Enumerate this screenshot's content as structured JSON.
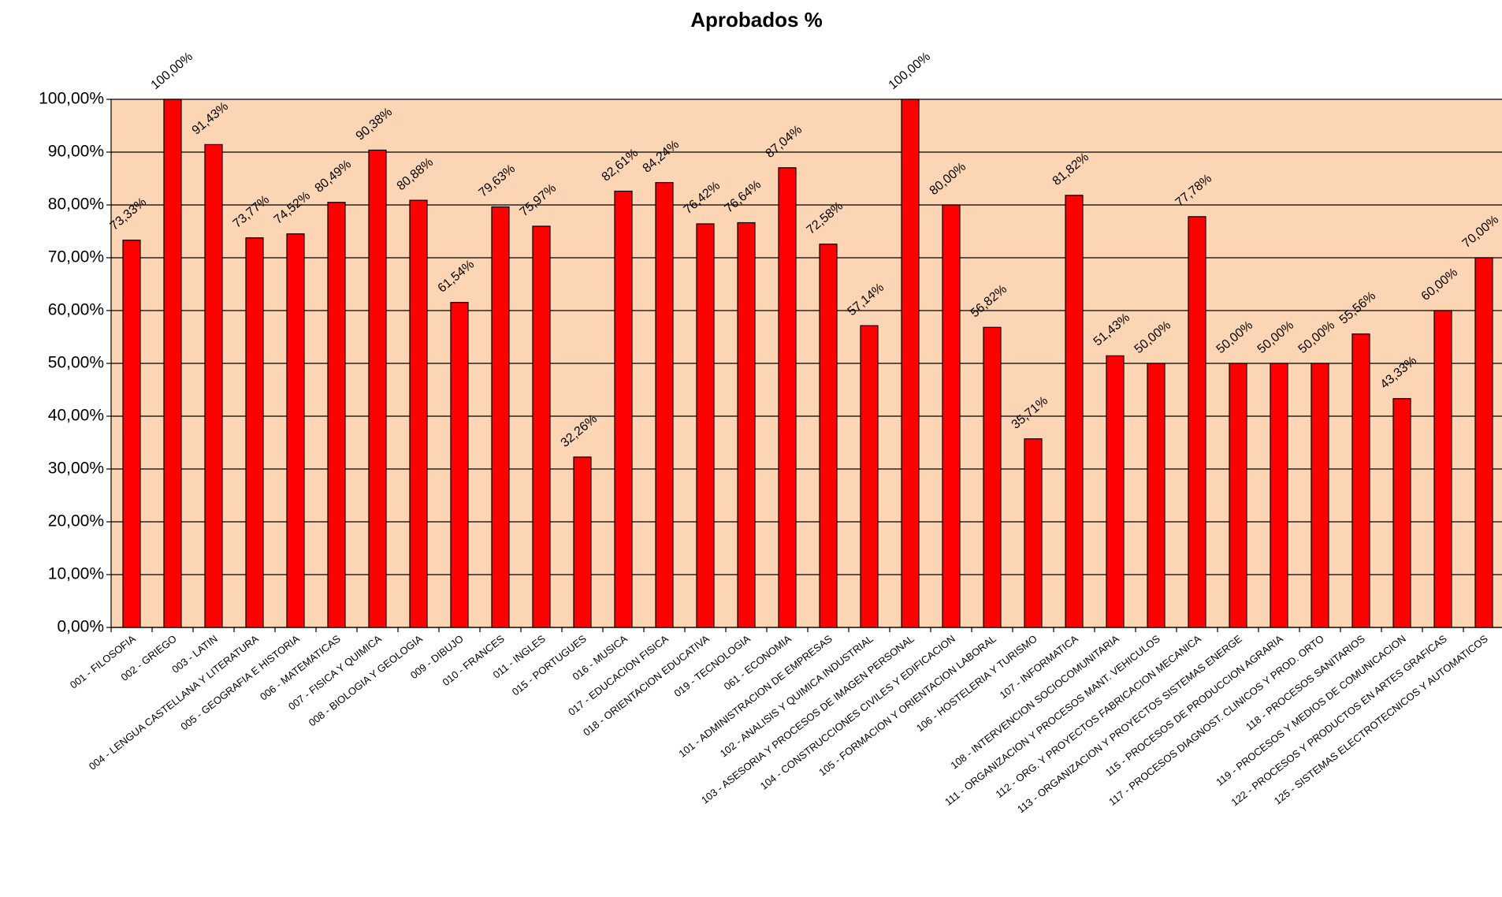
{
  "chart_data": {
    "type": "bar",
    "title": "Aprobados %",
    "categories": [
      "001 - FILOSOFIA",
      "002 - GRIEGO",
      "003 - LATIN",
      "004 - LENGUA CASTELLANA Y LITERATURA",
      "005 - GEOGRAFIA E HISTORIA",
      "006 - MATEMATICAS",
      "007 - FISICA Y QUIMICA",
      "008 - BIOLOGIA Y GEOLOGIA",
      "009 - DIBUJO",
      "010 - FRANCES",
      "011 - INGLES",
      "015 - PORTUGUES",
      "016 - MUSICA",
      "017 - EDUCACION FISICA",
      "018 - ORIENTACION EDUCATIVA",
      "019 - TECNOLOGIA",
      "061 - ECONOMIA",
      "101 - ADMINISTRACION DE EMPRESAS",
      "102 - ANALISIS Y QUIMICA INDUSTRIAL",
      "103 - ASESORIA Y PROCESOS DE IMAGEN PERSONAL",
      "104 - CONSTRUCCIONES CIVILES Y EDIFICACION",
      "105 - FORMACION Y ORIENTACION LABORAL",
      "106 - HOSTELERIA Y TURISMO",
      "107 - INFORMATICA",
      "108 - INTERVENCION SOCIOCOMUNITARIA",
      "111 - ORGANIZACION Y PROCESOS MANT. VEHICULOS",
      "112 - ORG. Y PROYECTOS FABRICACION MECANICA",
      "113 - ORGANIZACION Y PROYECTOS SISTEMAS ENERGE",
      "115 - PROCESOS DE PRODUCCION AGRARIA",
      "117 - PROCESOS DIAGNOST. CLINICOS Y PROD. ORTO",
      "118 - PROCESOS SANITARIOS",
      "119 - PROCESOS Y MEDIOS DE COMUNICACION",
      "122 - PROCESOS Y PRODUCTOS EN ARTES GRAFICAS",
      "125 - SISTEMAS ELECTROTECNICOS Y AUTOMATICOS"
    ],
    "values": [
      73.33,
      100,
      91.43,
      73.77,
      74.52,
      80.49,
      90.38,
      80.88,
      61.54,
      79.63,
      75.97,
      32.26,
      82.61,
      84.24,
      76.42,
      76.64,
      87.04,
      72.58,
      57.14,
      100,
      80,
      56.82,
      35.71,
      81.82,
      51.43,
      50,
      77.78,
      50,
      50,
      50,
      55.56,
      43.33,
      60,
      70
    ],
    "value_labels": [
      "73,33%",
      "100,00%",
      "91,43%",
      "73,77%",
      "74,52%",
      "80,49%",
      "90,38%",
      "80,88%",
      "61,54%",
      "79,63%",
      "75,97%",
      "32,26%",
      "82,61%",
      "84,24%",
      "76,42%",
      "76,64%",
      "87,04%",
      "72,58%",
      "57,14%",
      "100,00%",
      "80,00%",
      "56,82%",
      "35,71%",
      "81,82%",
      "51,43%",
      "50,00%",
      "77,78%",
      "50,00%",
      "50,00%",
      "50,00%",
      "55,56%",
      "43,33%",
      "60,00%",
      "70,00%"
    ],
    "color": "#ff0000",
    "background": "#fcd5b4",
    "ylim": [
      0,
      100
    ],
    "yticks": [
      {
        "value": 0,
        "label": "0,00%"
      },
      {
        "value": 10,
        "label": "10,00%"
      },
      {
        "value": 20,
        "label": "20,00%"
      },
      {
        "value": 30,
        "label": "30,00%"
      },
      {
        "value": 40,
        "label": "40,00%"
      },
      {
        "value": 50,
        "label": "50,00%"
      },
      {
        "value": 60,
        "label": "60,00%"
      },
      {
        "value": 70,
        "label": "70,00%"
      },
      {
        "value": 80,
        "label": "80,00%"
      },
      {
        "value": 90,
        "label": "90,00%"
      },
      {
        "value": 100,
        "label": "100,00%"
      }
    ],
    "grid": true
  }
}
